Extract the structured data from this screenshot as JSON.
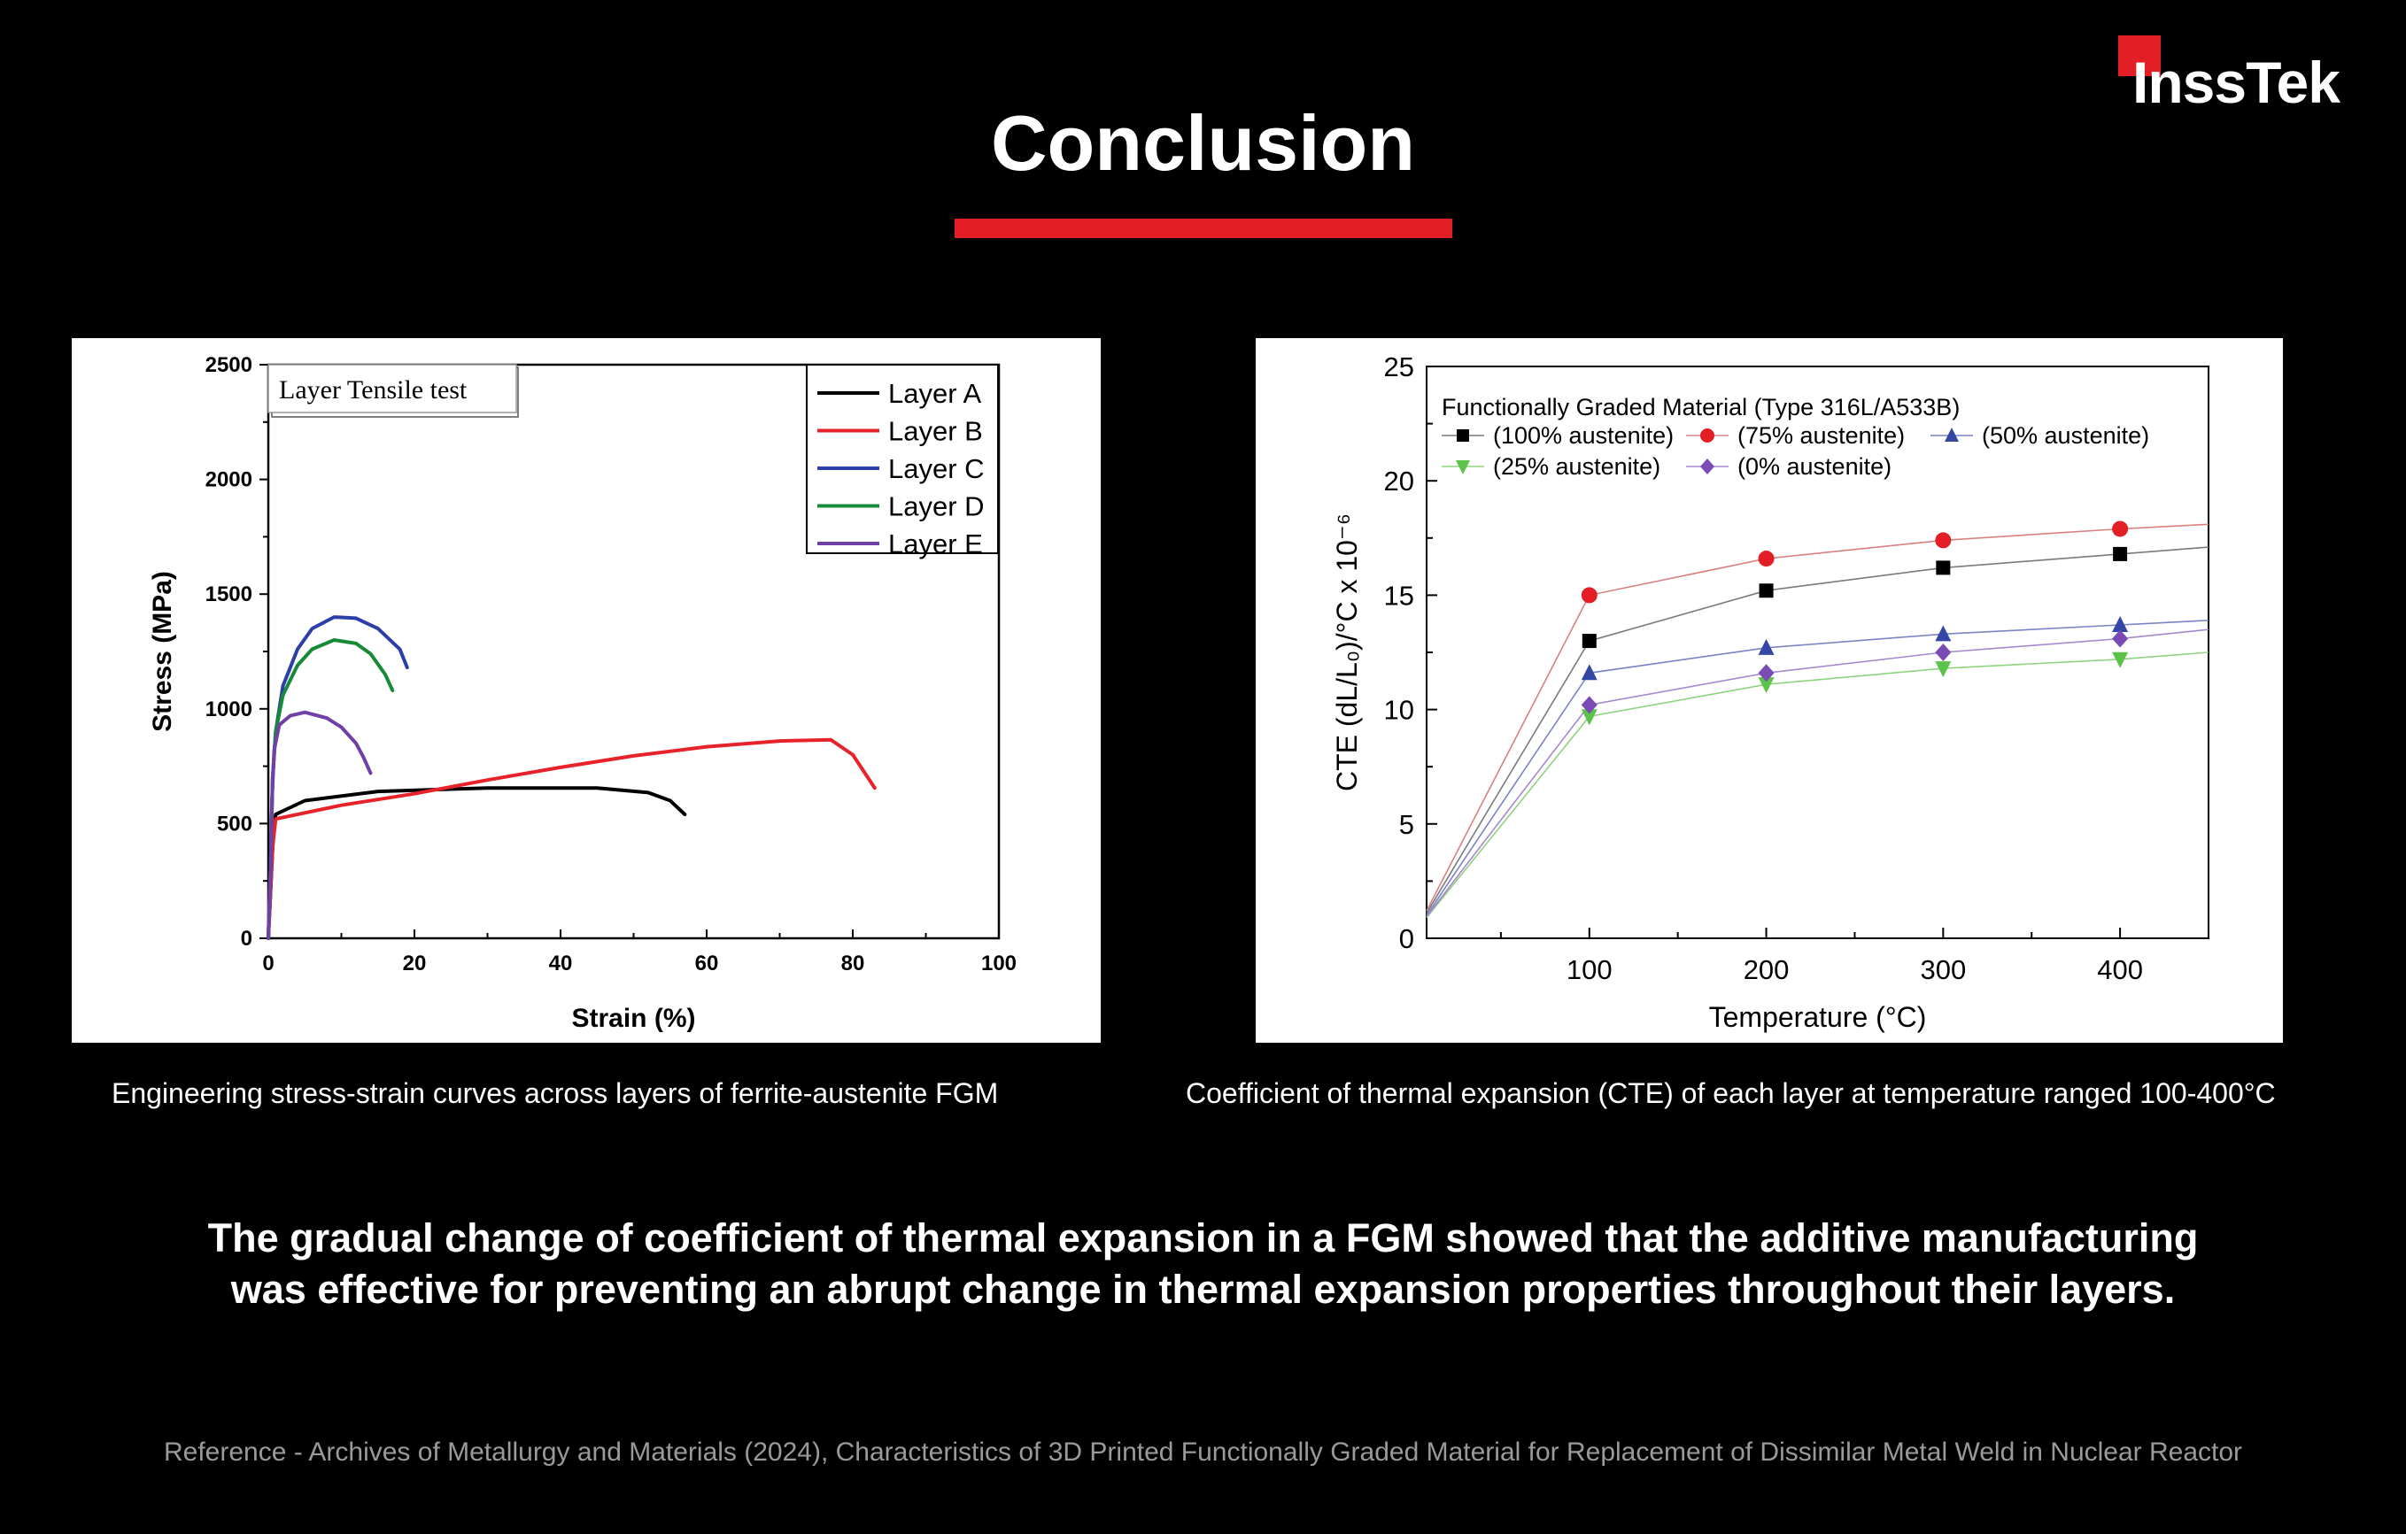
{
  "brand": {
    "name": "InssTek",
    "accent": "#e31e24"
  },
  "title": "Conclusion",
  "captions": {
    "left": "Engineering stress-strain curves across layers of ferrite-austenite FGM",
    "right": "Coefficient of thermal expansion (CTE) of each layer at temperature ranged 100-400°C"
  },
  "conclusion": {
    "line1": "The gradual change of coefficient of thermal expansion in a FGM showed that the additive manufacturing",
    "line2": "was effective for preventing an abrupt change in thermal expansion properties throughout their layers."
  },
  "reference": "Reference - Archives of Metallurgy and Materials (2024), Characteristics of 3D Printed Functionally Graded Material for Replacement of Dissimilar Metal Weld in Nuclear Reactor",
  "chart_data": [
    {
      "type": "line",
      "title": "Layer Tensile test",
      "xlabel": "Strain (%)",
      "ylabel": "Stress (MPa)",
      "xlim": [
        0,
        100
      ],
      "ylim": [
        0,
        2500
      ],
      "xticks": [
        "0",
        "20",
        "40",
        "60",
        "80",
        "100"
      ],
      "yticks": [
        "0",
        "500",
        "1000",
        "1500",
        "2000",
        "2500"
      ],
      "legend_position": "top-right",
      "series": [
        {
          "name": "Layer A",
          "color": "#000000",
          "points": [
            [
              0,
              0
            ],
            [
              0.3,
              200
            ],
            [
              0.6,
              400
            ],
            [
              1,
              540
            ],
            [
              5,
              600
            ],
            [
              15,
              640
            ],
            [
              30,
              655
            ],
            [
              45,
              655
            ],
            [
              52,
              635
            ],
            [
              55,
              600
            ],
            [
              57,
              540
            ]
          ]
        },
        {
          "name": "Layer B",
          "color": "#e8222b",
          "points": [
            [
              0,
              0
            ],
            [
              0.3,
              200
            ],
            [
              0.6,
              400
            ],
            [
              1,
              520
            ],
            [
              10,
              580
            ],
            [
              20,
              630
            ],
            [
              30,
              690
            ],
            [
              40,
              745
            ],
            [
              50,
              795
            ],
            [
              60,
              835
            ],
            [
              70,
              860
            ],
            [
              77,
              865
            ],
            [
              80,
              800
            ],
            [
              83,
              655
            ]
          ]
        },
        {
          "name": "Layer C",
          "color": "#2c3fa9",
          "points": [
            [
              0,
              0
            ],
            [
              0.3,
              300
            ],
            [
              0.6,
              700
            ],
            [
              1,
              900
            ],
            [
              2,
              1100
            ],
            [
              4,
              1260
            ],
            [
              6,
              1350
            ],
            [
              9,
              1400
            ],
            [
              12,
              1395
            ],
            [
              15,
              1350
            ],
            [
              18,
              1260
            ],
            [
              19,
              1180
            ]
          ]
        },
        {
          "name": "Layer D",
          "color": "#168a35",
          "points": [
            [
              0,
              0
            ],
            [
              0.3,
              300
            ],
            [
              0.6,
              700
            ],
            [
              1,
              900
            ],
            [
              2,
              1060
            ],
            [
              4,
              1190
            ],
            [
              6,
              1260
            ],
            [
              9,
              1300
            ],
            [
              12,
              1285
            ],
            [
              14,
              1240
            ],
            [
              16,
              1150
            ],
            [
              17,
              1080
            ]
          ]
        },
        {
          "name": "Layer E",
          "color": "#7040a8",
          "points": [
            [
              0,
              0
            ],
            [
              0.3,
              300
            ],
            [
              0.5,
              600
            ],
            [
              0.8,
              820
            ],
            [
              1.5,
              930
            ],
            [
              3,
              970
            ],
            [
              5,
              985
            ],
            [
              8,
              960
            ],
            [
              10,
              920
            ],
            [
              12,
              850
            ],
            [
              13,
              790
            ],
            [
              14,
              720
            ]
          ]
        }
      ]
    },
    {
      "type": "line",
      "title": "",
      "legend_title": "Functionally Graded Material (Type 316L/A533B)",
      "xlabel": "Temperature (°C)",
      "ylabel": "CTE (dL/L₀)/°C x 10⁻⁶",
      "xlim": [
        8,
        450
      ],
      "ylim": [
        0,
        25
      ],
      "xticks": [
        "100",
        "200",
        "300",
        "400"
      ],
      "yticks": [
        "0",
        "5",
        "10",
        "15",
        "20",
        "25"
      ],
      "legend_position": "top-left",
      "x": [
        8,
        100,
        200,
        300,
        400,
        450
      ],
      "series": [
        {
          "name": "(100% austenite)",
          "marker": "square",
          "color": "#000000",
          "line_color": "#7a7a7a",
          "values": [
            1.1,
            13.0,
            15.2,
            16.2,
            16.8,
            17.1
          ]
        },
        {
          "name": "(75% austenite)",
          "marker": "circle",
          "color": "#e31e24",
          "line_color": "#d88080",
          "values": [
            1.2,
            15.0,
            16.6,
            17.4,
            17.9,
            18.1
          ]
        },
        {
          "name": "(50% austenite)",
          "marker": "triangle-up",
          "color": "#3547a5",
          "line_color": "#7a84c4",
          "values": [
            1.0,
            11.6,
            12.7,
            13.3,
            13.7,
            13.9
          ]
        },
        {
          "name": "(25% austenite)",
          "marker": "triangle-down",
          "color": "#5cc24a",
          "line_color": "#8fd27f",
          "values": [
            0.9,
            9.7,
            11.1,
            11.8,
            12.2,
            12.5
          ]
        },
        {
          "name": "(0% austenite)",
          "marker": "diamond",
          "color": "#7b4bb5",
          "line_color": "#a588cf",
          "values": [
            0.95,
            10.2,
            11.6,
            12.5,
            13.1,
            13.5
          ]
        }
      ]
    }
  ]
}
